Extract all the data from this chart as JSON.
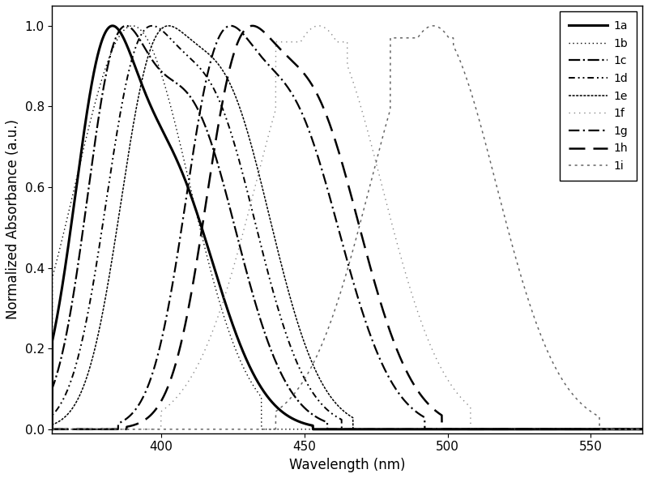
{
  "xlabel": "Wavelength (nm)",
  "ylabel": "Normalized Absorbance (a.u.)",
  "xlim": [
    362,
    568
  ],
  "ylim": [
    -0.01,
    1.05
  ],
  "xticks": [
    400,
    450,
    500,
    550
  ],
  "yticks": [
    0.0,
    0.2,
    0.4,
    0.6,
    0.8,
    1.0
  ],
  "background_color": "#ffffff",
  "legend_fontsize": 10,
  "axis_fontsize": 12,
  "tick_fontsize": 11
}
